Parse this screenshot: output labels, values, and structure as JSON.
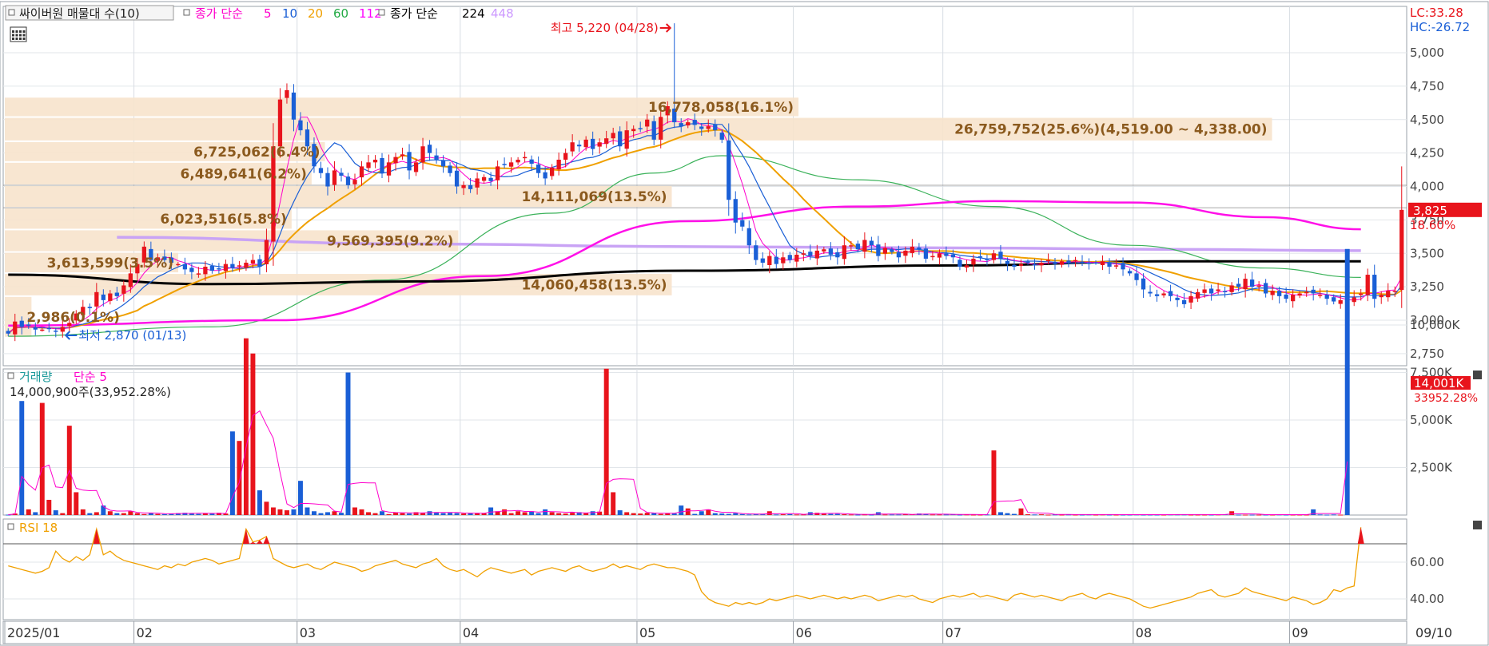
{
  "main_panel": {
    "legend": {
      "indicator_label": "싸이버원 매물대 수(10)",
      "ma_title": "종가 단순",
      "ma_periods": [
        "5",
        "10",
        "20",
        "60",
        "112"
      ],
      "ma_colors": [
        "#ff00cc",
        "#1a5fd6",
        "#f0a000",
        "#22aa44",
        "#ff00ff"
      ],
      "long_ma_title": "종가 단순",
      "long_ma_periods": [
        "224",
        "448"
      ],
      "long_ma_colors": [
        "#000000",
        "#cc99ff"
      ]
    },
    "high_annotation": "최고 5,220 (04/28)",
    "low_annotation": "최저 2,870 (01/13)",
    "lc_label": "LC:33.28",
    "hc_label": "HC:-26.72",
    "current_price_label": "3,825",
    "change_label": "18.60%",
    "price_axis_ticks": [
      "5,000",
      "4,750",
      "4,500",
      "4,250",
      "4,000",
      "3,750",
      "3,500",
      "3,250",
      "3,000",
      "2,750"
    ],
    "price_axis_values": [
      5000,
      4750,
      4500,
      4250,
      4000,
      3750,
      3500,
      3250,
      3000,
      2750
    ],
    "volume_profile": [
      {
        "label": "26,759,752(25.6%)(4,519.00 ~ 4,338.00)",
        "low": 4338,
        "high": 4519,
        "fraction": 0.95
      },
      {
        "label": "16,778,058(16.1%)",
        "low": 4519,
        "high": 4670,
        "fraction": 0.595
      },
      {
        "label": "6,725,062(6.4%)",
        "low": 4183,
        "high": 4338,
        "fraction": 0.24
      },
      {
        "label": "6,489,641(6.2%)",
        "low": 4009,
        "high": 4183,
        "fraction": 0.23
      },
      {
        "label": "14,111,069(13.5%)",
        "low": 3841,
        "high": 4009,
        "fraction": 0.5
      },
      {
        "label": "6,023,516(5.8%)",
        "low": 3678,
        "high": 3841,
        "fraction": 0.215
      },
      {
        "label": "9,569,395(9.2%)",
        "low": 3510,
        "high": 3678,
        "fraction": 0.34
      },
      {
        "label": "3,613,599(3.5%)",
        "low": 3352,
        "high": 3510,
        "fraction": 0.13
      },
      {
        "label": "14,060,458(13.5%)",
        "low": 3180,
        "high": 3352,
        "fraction": 0.5
      },
      {
        "label": "2,986(0.1%)",
        "low": 2870,
        "high": 3180,
        "fraction": 0.02
      }
    ],
    "ma_legend_title_color": "#ff00cc"
  },
  "volume_panel": {
    "legend_title": "거래량",
    "legend_ma": "단순 5",
    "sub_label": "14,000,900주(33,952.28%)",
    "last_value_label": "14,001K",
    "last_pct_label": "33952.28%",
    "axis_ticks": [
      "10,000K",
      "7,500K",
      "5,000K",
      "2,500K"
    ],
    "axis_values": [
      10000,
      7500,
      5000,
      2500
    ],
    "ymax": 14500
  },
  "rsi_panel": {
    "legend_title": "RSI 18",
    "axis_ticks": [
      "60.00",
      "40.00"
    ],
    "axis_values": [
      60,
      40
    ],
    "ylim": [
      27,
      85
    ],
    "threshold": 70
  },
  "x_axis": {
    "labels": [
      "2025/01",
      "02",
      "03",
      "04",
      "05",
      "06",
      "07",
      "08",
      "09"
    ],
    "label_index": [
      0,
      19,
      43,
      67,
      93,
      116,
      138,
      166,
      189
    ],
    "right_label": "09/10"
  },
  "chart_data": {
    "type": "candlestick",
    "series_count": 200,
    "key_points": [
      {
        "date": "01/13",
        "low": 2870,
        "note": "최저"
      },
      {
        "date": "04/28",
        "high": 5220,
        "note": "최고"
      },
      {
        "date": "09/10",
        "close": 3825,
        "volume_k": 14001
      }
    ],
    "closes": [
      2900,
      2990,
      2950,
      2960,
      2930,
      2930,
      2940,
      2920,
      2950,
      2980,
      3050,
      3100,
      3090,
      3210,
      3150,
      3200,
      3180,
      3260,
      3350,
      3420,
      3550,
      3450,
      3470,
      3450,
      3430,
      3420,
      3380,
      3360,
      3350,
      3400,
      3370,
      3380,
      3420,
      3390,
      3410,
      3430,
      3450,
      3400,
      3600,
      4300,
      4650,
      4720,
      4500,
      4420,
      4300,
      4150,
      4100,
      4000,
      4120,
      4080,
      4010,
      4050,
      4150,
      4180,
      4200,
      4100,
      4180,
      4220,
      4240,
      4120,
      4180,
      4300,
      4250,
      4200,
      4150,
      4100,
      4000,
      4010,
      3980,
      4060,
      4070,
      4040,
      4150,
      4160,
      4180,
      4200,
      4220,
      4170,
      4100,
      4060,
      4140,
      4200,
      4250,
      4330,
      4300,
      4350,
      4280,
      4330,
      4360,
      4400,
      4300,
      4420,
      4430,
      4430,
      4500,
      4350,
      4520,
      4600,
      4480,
      4450,
      4480,
      4460,
      4430,
      4450,
      4420,
      4350,
      3900,
      3730,
      3700,
      3560,
      3450,
      3430,
      3480,
      3420,
      3470,
      3450,
      3490,
      3500,
      3480,
      3520,
      3530,
      3490,
      3470,
      3560,
      3560,
      3530,
      3600,
      3560,
      3480,
      3540,
      3510,
      3470,
      3520,
      3550,
      3530,
      3460,
      3480,
      3500,
      3480,
      3470,
      3400,
      3410,
      3460,
      3470,
      3450,
      3500,
      3460,
      3420,
      3400,
      3420,
      3430,
      3410,
      3430,
      3450,
      3420,
      3440,
      3430,
      3450,
      3430,
      3420,
      3430,
      3440,
      3400,
      3410,
      3380,
      3350,
      3300,
      3230,
      3200,
      3180,
      3200,
      3180,
      3150,
      3120,
      3180,
      3210,
      3230,
      3200,
      3230,
      3210,
      3260,
      3250,
      3310,
      3250,
      3260,
      3200,
      3220,
      3180,
      3160,
      3190,
      3200,
      3210,
      3200,
      3190,
      3160,
      3140,
      3150,
      3130,
      3170,
      3200,
      3340,
      3160,
      3190,
      3220,
      3220,
      3825
    ],
    "volumes_k": [
      20,
      80,
      6000,
      300,
      150,
      5900,
      800,
      250,
      100,
      4700,
      1200,
      300,
      100,
      150,
      500,
      200,
      100,
      100,
      200,
      100,
      50,
      100,
      60,
      50,
      80,
      100,
      120,
      100,
      60,
      90,
      80,
      120,
      80,
      4400,
      3900,
      9300,
      8500,
      1300,
      700,
      400,
      300,
      250,
      300,
      1800,
      400,
      200,
      100,
      150,
      200,
      120,
      7500,
      400,
      300,
      150,
      100,
      200,
      50,
      150,
      100,
      80,
      150,
      100,
      200,
      150,
      100,
      120,
      100,
      80,
      100,
      100,
      90,
      400,
      200,
      300,
      100,
      200,
      150,
      200,
      100,
      300,
      150,
      100,
      80,
      120,
      150,
      100,
      200,
      180,
      7700,
      1200,
      250,
      150,
      100,
      80,
      120,
      100,
      60,
      100,
      80,
      500,
      350,
      60,
      200,
      300,
      100,
      80,
      60,
      100,
      50,
      30,
      40,
      40,
      200,
      30,
      40,
      50,
      30,
      30,
      150,
      120,
      80,
      60,
      60,
      40,
      30,
      20,
      30,
      20,
      150,
      30,
      30,
      30,
      40,
      40,
      80,
      60,
      30,
      30,
      30,
      40,
      20,
      30,
      20,
      20,
      30,
      3400,
      150,
      100,
      60,
      350,
      40,
      30,
      40,
      20,
      30,
      20,
      30,
      20,
      20,
      30,
      20,
      30,
      20,
      20,
      20,
      20,
      30,
      20,
      20,
      20,
      20,
      30,
      30,
      30,
      20,
      20,
      20,
      20,
      30,
      40,
      200,
      20,
      20,
      20,
      20,
      20,
      20,
      30,
      20,
      20,
      20,
      20,
      300,
      30,
      20,
      30,
      20,
      14001
    ],
    "rsi": [
      58,
      57,
      56,
      55,
      54,
      55,
      57,
      66,
      62,
      60,
      63,
      61,
      64,
      78,
      64,
      66,
      63,
      61,
      60,
      59,
      58,
      57,
      56,
      58,
      57,
      59,
      58,
      60,
      61,
      62,
      61,
      59,
      60,
      61,
      62,
      78,
      71,
      72,
      74,
      62,
      60,
      58,
      57,
      58,
      59,
      57,
      56,
      58,
      60,
      59,
      58,
      57,
      55,
      56,
      58,
      59,
      60,
      61,
      59,
      58,
      57,
      59,
      60,
      62,
      58,
      56,
      55,
      56,
      54,
      52,
      55,
      57,
      56,
      55,
      54,
      55,
      56,
      53,
      55,
      56,
      57,
      56,
      55,
      57,
      58,
      56,
      55,
      56,
      57,
      59,
      57,
      58,
      57,
      56,
      58,
      59,
      58,
      57,
      57,
      56,
      55,
      53,
      44,
      40,
      38,
      37,
      36,
      38,
      37,
      38,
      37,
      38,
      40,
      39,
      40,
      41,
      42,
      41,
      40,
      41,
      42,
      41,
      40,
      41,
      40,
      41,
      42,
      41,
      39,
      40,
      41,
      42,
      41,
      42,
      40,
      39,
      38,
      40,
      41,
      42,
      41,
      42,
      43,
      41,
      42,
      41,
      40,
      39,
      42,
      43,
      42,
      41,
      42,
      41,
      40,
      39,
      41,
      42,
      43,
      41,
      40,
      42,
      43,
      42,
      41,
      40,
      38,
      36,
      35,
      36,
      37,
      38,
      39,
      40,
      41,
      43,
      44,
      45,
      42,
      41,
      42,
      43,
      46,
      44,
      43,
      42,
      41,
      40,
      39,
      41,
      40,
      39,
      37,
      38,
      40,
      45,
      44,
      46,
      47,
      79
    ],
    "ma224_points": [
      {
        "i": 0,
        "v": 3340
      },
      {
        "i": 30,
        "v": 3270
      },
      {
        "i": 60,
        "v": 3290
      },
      {
        "i": 100,
        "v": 3370
      },
      {
        "i": 140,
        "v": 3410
      },
      {
        "i": 170,
        "v": 3440
      },
      {
        "i": 199,
        "v": 3440
      }
    ],
    "ma448_points": [
      {
        "i": 16,
        "v": 3620
      },
      {
        "i": 60,
        "v": 3570
      },
      {
        "i": 100,
        "v": 3550
      },
      {
        "i": 140,
        "v": 3540
      },
      {
        "i": 170,
        "v": 3530
      },
      {
        "i": 199,
        "v": 3520
      }
    ],
    "ma112_points": [
      {
        "i": 0,
        "v": 2960
      },
      {
        "i": 40,
        "v": 3000
      },
      {
        "i": 70,
        "v": 3330
      },
      {
        "i": 100,
        "v": 3740
      },
      {
        "i": 125,
        "v": 3850
      },
      {
        "i": 145,
        "v": 3890
      },
      {
        "i": 165,
        "v": 3880
      },
      {
        "i": 185,
        "v": 3770
      },
      {
        "i": 199,
        "v": 3680
      }
    ],
    "ma60_points": [
      {
        "i": 0,
        "v": 2880
      },
      {
        "i": 30,
        "v": 2950
      },
      {
        "i": 55,
        "v": 3300
      },
      {
        "i": 80,
        "v": 3800
      },
      {
        "i": 95,
        "v": 4100
      },
      {
        "i": 105,
        "v": 4230
      },
      {
        "i": 125,
        "v": 4050
      },
      {
        "i": 145,
        "v": 3850
      },
      {
        "i": 165,
        "v": 3560
      },
      {
        "i": 185,
        "v": 3390
      },
      {
        "i": 199,
        "v": 3320
      }
    ]
  }
}
